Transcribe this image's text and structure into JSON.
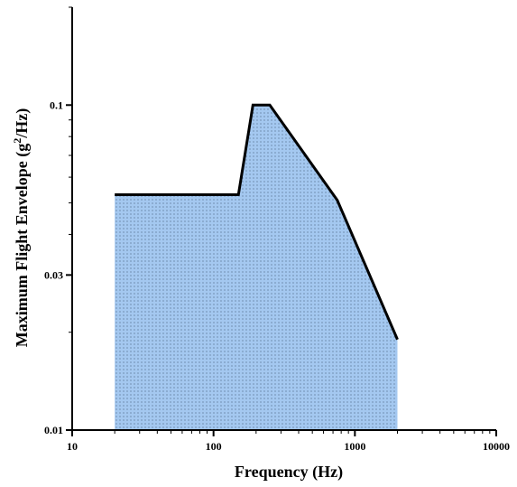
{
  "chart_data": {
    "type": "area",
    "title": "",
    "xlabel": "Frequency  (Hz)",
    "ylabel_prefix": "Maximum Flight Envelope (g",
    "ylabel_sup": "2",
    "ylabel_suffix": "/Hz)",
    "x_scale": "log",
    "y_scale": "log",
    "xlim": [
      10,
      10000
    ],
    "ylim": [
      0.01,
      0.2
    ],
    "x_ticks": [
      10,
      100,
      1000,
      10000
    ],
    "x_tick_labels": [
      "10",
      "100",
      "1000",
      "10000"
    ],
    "y_ticks": [
      0.01,
      0.03,
      0.1
    ],
    "y_tick_labels": [
      "0.01",
      "0.03",
      "0.1"
    ],
    "grid": false,
    "series": [
      {
        "x": [
          20,
          150,
          190,
          250,
          750,
          2000
        ],
        "y": [
          0.053,
          0.053,
          0.1,
          0.1,
          0.051,
          0.019
        ]
      }
    ],
    "fill_color": "#a4c8f0",
    "line_color": "#000000"
  }
}
